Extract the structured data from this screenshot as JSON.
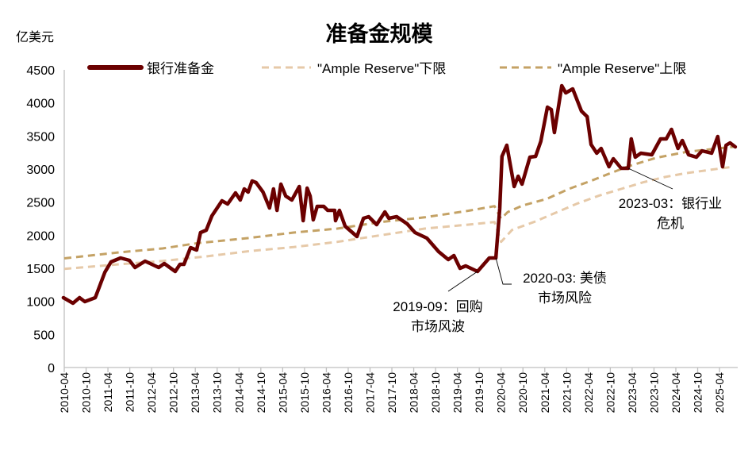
{
  "chart_data": {
    "type": "line",
    "title": "准备金规模",
    "ylabel": "亿美元",
    "xlabel": "",
    "ylim": [
      0,
      4500
    ],
    "xlim": [
      2010.25,
      2025.7
    ],
    "y_ticks": [
      "0",
      "500",
      "1000",
      "1500",
      "2000",
      "2500",
      "3000",
      "3500",
      "4000",
      "4500"
    ],
    "x_ticks": [
      "2010-04",
      "2010-10",
      "2011-04",
      "2011-10",
      "2012-04",
      "2012-10",
      "2013-04",
      "2013-10",
      "2014-04",
      "2014-10",
      "2015-04",
      "2015-10",
      "2016-04",
      "2016-10",
      "2017-04",
      "2017-10",
      "2018-04",
      "2018-10",
      "2019-04",
      "2019-10",
      "2020-04",
      "2020-10",
      "2021-04",
      "2021-10",
      "2022-04",
      "2022-10",
      "2023-04",
      "2023-10",
      "2024-04",
      "2024-10",
      "2025-04"
    ],
    "grid": false,
    "legend_position": "top",
    "series": [
      {
        "name": "银行准备金",
        "color": "#6b0000",
        "style": "solid",
        "points": [
          [
            2010.23,
            1056
          ],
          [
            2010.45,
            972
          ],
          [
            2010.6,
            1056
          ],
          [
            2010.72,
            996
          ],
          [
            2010.96,
            1056
          ],
          [
            2011.18,
            1440
          ],
          [
            2011.32,
            1596
          ],
          [
            2011.54,
            1656
          ],
          [
            2011.74,
            1620
          ],
          [
            2011.87,
            1512
          ],
          [
            2012.1,
            1608
          ],
          [
            2012.41,
            1512
          ],
          [
            2012.54,
            1572
          ],
          [
            2012.79,
            1452
          ],
          [
            2012.9,
            1560
          ],
          [
            2012.99,
            1560
          ],
          [
            2013.14,
            1812
          ],
          [
            2013.28,
            1776
          ],
          [
            2013.37,
            2040
          ],
          [
            2013.5,
            2076
          ],
          [
            2013.63,
            2292
          ],
          [
            2013.86,
            2520
          ],
          [
            2013.99,
            2472
          ],
          [
            2014.17,
            2640
          ],
          [
            2014.28,
            2532
          ],
          [
            2014.37,
            2700
          ],
          [
            2014.46,
            2652
          ],
          [
            2014.55,
            2820
          ],
          [
            2014.64,
            2796
          ],
          [
            2014.8,
            2652
          ],
          [
            2014.95,
            2412
          ],
          [
            2015.04,
            2700
          ],
          [
            2015.12,
            2376
          ],
          [
            2015.21,
            2772
          ],
          [
            2015.32,
            2592
          ],
          [
            2015.46,
            2532
          ],
          [
            2015.63,
            2736
          ],
          [
            2015.72,
            2220
          ],
          [
            2015.81,
            2712
          ],
          [
            2015.88,
            2592
          ],
          [
            2015.95,
            2232
          ],
          [
            2016.04,
            2436
          ],
          [
            2016.19,
            2436
          ],
          [
            2016.28,
            2376
          ],
          [
            2016.44,
            2376
          ],
          [
            2016.46,
            2220
          ],
          [
            2016.55,
            2376
          ],
          [
            2016.68,
            2136
          ],
          [
            2016.95,
            1980
          ],
          [
            2017.1,
            2256
          ],
          [
            2017.22,
            2280
          ],
          [
            2017.4,
            2160
          ],
          [
            2017.59,
            2352
          ],
          [
            2017.68,
            2256
          ],
          [
            2017.86,
            2280
          ],
          [
            2018.1,
            2172
          ],
          [
            2018.28,
            2040
          ],
          [
            2018.55,
            1956
          ],
          [
            2018.82,
            1752
          ],
          [
            2019.04,
            1632
          ],
          [
            2019.17,
            1692
          ],
          [
            2019.31,
            1500
          ],
          [
            2019.44,
            1536
          ],
          [
            2019.71,
            1452
          ],
          [
            2019.98,
            1656
          ],
          [
            2020.13,
            1656
          ],
          [
            2020.22,
            2400
          ],
          [
            2020.27,
            3192
          ],
          [
            2020.38,
            3360
          ],
          [
            2020.55,
            2736
          ],
          [
            2020.64,
            2892
          ],
          [
            2020.73,
            2772
          ],
          [
            2020.91,
            3180
          ],
          [
            2021.04,
            3192
          ],
          [
            2021.16,
            3420
          ],
          [
            2021.31,
            3936
          ],
          [
            2021.4,
            3900
          ],
          [
            2021.47,
            3552
          ],
          [
            2021.64,
            4260
          ],
          [
            2021.73,
            4152
          ],
          [
            2021.89,
            4212
          ],
          [
            2022.09,
            3876
          ],
          [
            2022.22,
            3792
          ],
          [
            2022.31,
            3372
          ],
          [
            2022.44,
            3240
          ],
          [
            2022.54,
            3312
          ],
          [
            2022.72,
            3036
          ],
          [
            2022.82,
            3156
          ],
          [
            2023.0,
            3012
          ],
          [
            2023.16,
            3012
          ],
          [
            2023.23,
            3456
          ],
          [
            2023.32,
            3180
          ],
          [
            2023.45,
            3240
          ],
          [
            2023.7,
            3216
          ],
          [
            2023.9,
            3456
          ],
          [
            2024.03,
            3456
          ],
          [
            2024.15,
            3600
          ],
          [
            2024.3,
            3312
          ],
          [
            2024.4,
            3432
          ],
          [
            2024.54,
            3216
          ],
          [
            2024.72,
            3180
          ],
          [
            2024.85,
            3276
          ],
          [
            2025.07,
            3240
          ],
          [
            2025.21,
            3492
          ],
          [
            2025.32,
            3036
          ],
          [
            2025.4,
            3360
          ],
          [
            2025.49,
            3396
          ],
          [
            2025.61,
            3336
          ]
        ]
      },
      {
        "name": "\"Ample Reserve\"下限",
        "color": "#e6c9a8",
        "style": "dashed",
        "points": [
          [
            2010.25,
            1490
          ],
          [
            2011.5,
            1560
          ],
          [
            2012.5,
            1610
          ],
          [
            2013.5,
            1680
          ],
          [
            2014.5,
            1760
          ],
          [
            2015.5,
            1820
          ],
          [
            2016.5,
            1900
          ],
          [
            2017.5,
            2000
          ],
          [
            2018.5,
            2100
          ],
          [
            2019.5,
            2160
          ],
          [
            2020.1,
            2200
          ],
          [
            2020.25,
            1900
          ],
          [
            2020.5,
            2080
          ],
          [
            2021.0,
            2200
          ],
          [
            2021.5,
            2340
          ],
          [
            2022.0,
            2480
          ],
          [
            2022.5,
            2600
          ],
          [
            2023.0,
            2700
          ],
          [
            2023.5,
            2800
          ],
          [
            2024.0,
            2880
          ],
          [
            2024.5,
            2940
          ],
          [
            2025.5,
            3030
          ]
        ]
      },
      {
        "name": "\"Ample Reserve\"上限",
        "color": "#c4a265",
        "style": "dashed",
        "points": [
          [
            2010.25,
            1650
          ],
          [
            2011.5,
            1740
          ],
          [
            2012.5,
            1800
          ],
          [
            2013.3,
            1880
          ],
          [
            2014.5,
            1960
          ],
          [
            2015.5,
            2040
          ],
          [
            2016.5,
            2100
          ],
          [
            2017.5,
            2200
          ],
          [
            2018.5,
            2270
          ],
          [
            2019.5,
            2370
          ],
          [
            2020.1,
            2440
          ],
          [
            2020.25,
            2250
          ],
          [
            2020.4,
            2350
          ],
          [
            2020.75,
            2450
          ],
          [
            2021.3,
            2550
          ],
          [
            2021.8,
            2700
          ],
          [
            2022.3,
            2820
          ],
          [
            2022.8,
            2950
          ],
          [
            2023.2,
            3050
          ],
          [
            2023.8,
            3170
          ],
          [
            2024.5,
            3260
          ],
          [
            2025.6,
            3340
          ]
        ]
      }
    ],
    "annotations": [
      {
        "lines": [
          "2019-09：回购",
          "市场风波"
        ],
        "target": [
          2019.71,
          1452
        ]
      },
      {
        "lines": [
          "2020-03: 美债",
          "市场风险"
        ],
        "target": [
          2020.13,
          1656
        ]
      },
      {
        "lines": [
          "2023-03：银行业",
          "危机"
        ],
        "target": [
          2023.16,
          3012
        ]
      }
    ]
  }
}
